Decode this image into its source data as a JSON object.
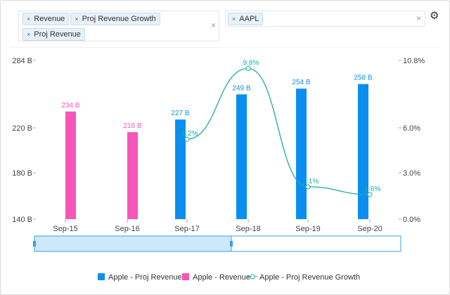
{
  "filters": {
    "metrics": [
      "Revenue",
      "Proj Revenue Growth",
      "Proj Revenue"
    ],
    "tickers": [
      "AAPL"
    ]
  },
  "icons": {
    "remove": "×",
    "clear": "×",
    "settings": "gear-icon"
  },
  "chart_data": {
    "type": "bar+line",
    "categories": [
      "Sep-15",
      "Sep-16",
      "Sep-17",
      "Sep-18",
      "Sep-19",
      "Sep-20"
    ],
    "series": [
      {
        "name": "Apple - Proj Revenue",
        "type": "bar",
        "color": "#0a8ff0",
        "values": [
          null,
          null,
          227,
          249,
          254,
          258
        ],
        "labels": [
          "",
          "",
          "227 B",
          "249 B",
          "254 B",
          "258 B"
        ]
      },
      {
        "name": "Apple - Revenue",
        "type": "bar",
        "color": "#f556b8",
        "values": [
          234,
          216,
          null,
          null,
          null,
          null
        ],
        "labels": [
          "234 B",
          "216 B",
          "",
          "",
          "",
          ""
        ]
      },
      {
        "name": "Apple - Proj Revenue Growth",
        "type": "line",
        "axis": "right",
        "color": "#20a8a8",
        "values": [
          null,
          null,
          5.2,
          9.8,
          2.1,
          1.6
        ],
        "labels": [
          "",
          "",
          "5.2%",
          "9.8%",
          "2.1%",
          "1.6%"
        ]
      }
    ],
    "yleft": {
      "ticks": [
        "140 B",
        "180 B",
        "220 B",
        "284 B"
      ],
      "values": [
        140,
        180,
        220,
        284
      ]
    },
    "yright": {
      "ticks": [
        "0.0%",
        "3.0%",
        "6.0%",
        "10.8%"
      ],
      "values": [
        0,
        3,
        6,
        10.8
      ]
    },
    "legend": "bottom"
  }
}
